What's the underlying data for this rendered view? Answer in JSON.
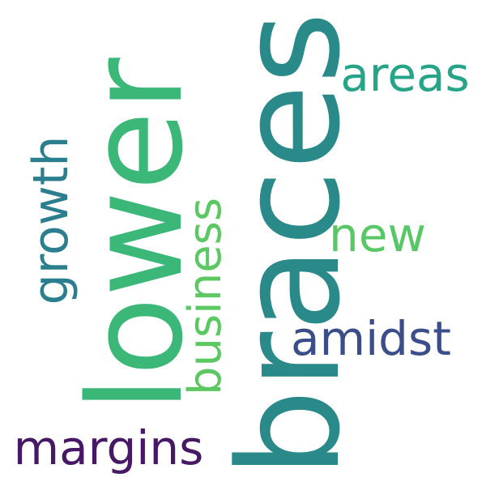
{
  "words": [
    {
      "text": "braces",
      "color": "#2a8a89",
      "orientation": "vertical"
    },
    {
      "text": "lower",
      "color": "#3bb878",
      "orientation": "vertical"
    },
    {
      "text": "growth",
      "color": "#2b7e8d",
      "orientation": "vertical"
    },
    {
      "text": "business",
      "color": "#5bc862",
      "orientation": "vertical"
    },
    {
      "text": "areas",
      "color": "#25a488",
      "orientation": "horizontal"
    },
    {
      "text": "new",
      "color": "#58c765",
      "orientation": "horizontal"
    },
    {
      "text": "amidst",
      "color": "#3c4e8a",
      "orientation": "horizontal"
    },
    {
      "text": "margins",
      "color": "#471865",
      "orientation": "horizontal"
    }
  ]
}
